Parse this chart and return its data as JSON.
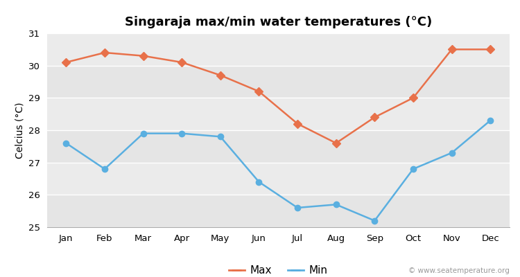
{
  "title": "Singaraja max/min water temperatures (°C)",
  "ylabel": "Celcius (°C)",
  "months": [
    "Jan",
    "Feb",
    "Mar",
    "Apr",
    "May",
    "Jun",
    "Jul",
    "Aug",
    "Sep",
    "Oct",
    "Nov",
    "Dec"
  ],
  "max_temps": [
    30.1,
    30.4,
    30.3,
    30.1,
    29.7,
    29.2,
    28.2,
    27.6,
    28.4,
    29.0,
    30.5,
    30.5
  ],
  "min_temps": [
    27.6,
    26.8,
    27.9,
    27.9,
    27.8,
    26.4,
    25.6,
    25.7,
    25.2,
    26.8,
    27.3,
    28.3
  ],
  "max_color": "#e8714a",
  "min_color": "#5aafe0",
  "bg_color": "#ffffff",
  "plot_bg_color": "#ebebeb",
  "stripe_color": "#e0e0e0",
  "grid_color": "#ffffff",
  "ylim": [
    25,
    31
  ],
  "yticks": [
    25,
    26,
    27,
    28,
    29,
    30,
    31
  ],
  "watermark": "© www.seatemperature.org",
  "title_fontsize": 13,
  "label_fontsize": 10,
  "tick_fontsize": 9.5
}
